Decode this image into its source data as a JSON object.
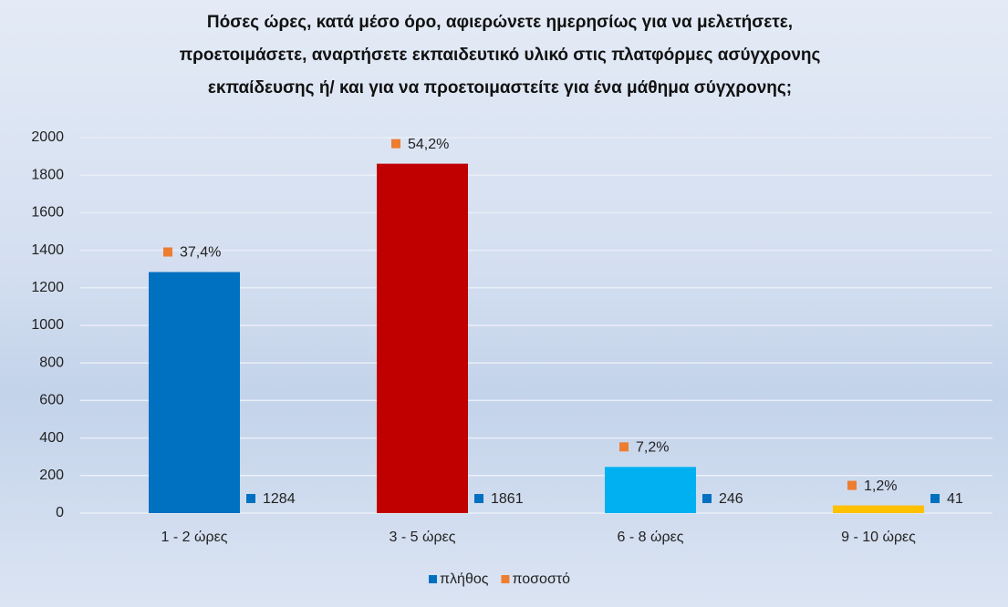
{
  "chart_data": {
    "type": "bar",
    "title": [
      "Πόσες ώρες, κατά μέσο όρο, αφιερώνετε ημερησίως για να μελετήσετε,",
      "προετοιμάσετε, αναρτήσετε εκπαιδευτικό υλικό στις πλατφόρμες ασύγχρονης",
      "εκπαίδευσης ή/ και για να προετοιμαστείτε για ένα μάθημα σύγχρονης;"
    ],
    "categories": [
      "1 - 2 ώρες",
      "3 - 5 ώρες",
      "6 - 8 ώρες",
      "9 - 10 ώρες"
    ],
    "series": [
      {
        "name": "πλήθος",
        "color": "#0070c0",
        "bar_colors": [
          "#0070c0",
          "#c00000",
          "#00b0f0",
          "#ffc000"
        ],
        "values": [
          1284,
          1861,
          246,
          41
        ]
      },
      {
        "name": "ποσοστό",
        "color": "#ed7d31",
        "values": [
          37.4,
          54.2,
          7.2,
          1.2
        ],
        "value_labels": [
          "37,4%",
          "54,2%",
          "7,2%",
          "1,2%"
        ]
      }
    ],
    "ylim": [
      0,
      2000
    ],
    "yticks": [
      0,
      200,
      400,
      600,
      800,
      1000,
      1200,
      1400,
      1600,
      1800,
      2000
    ],
    "grid": true
  }
}
